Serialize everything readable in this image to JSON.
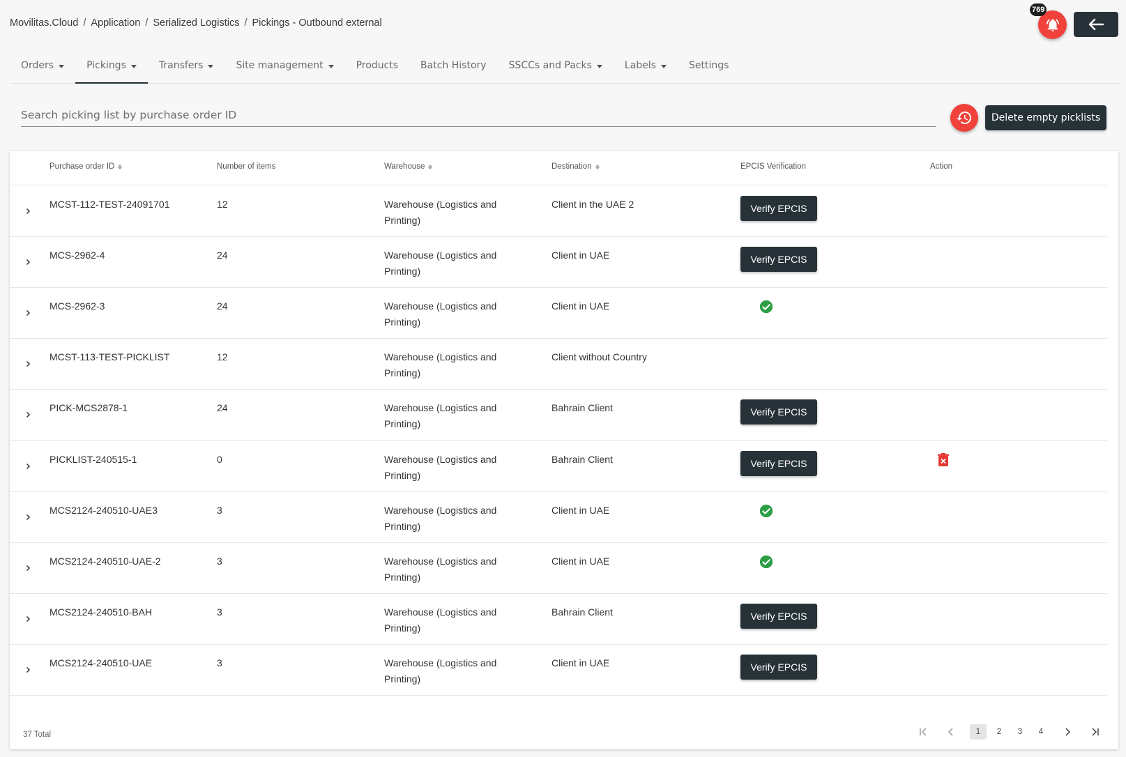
{
  "breadcrumb": [
    "Movilitas.Cloud",
    "Application",
    "Serialized Logistics",
    "Pickings - Outbound external"
  ],
  "breadcrumb_separator": "/",
  "notifications": {
    "count": "769",
    "icon": "bell-icon",
    "color": "#f0413a"
  },
  "back_icon": "arrow-left-icon",
  "tabs": [
    {
      "label": "Orders",
      "dropdown": true
    },
    {
      "label": "Pickings",
      "dropdown": true,
      "active": true
    },
    {
      "label": "Transfers",
      "dropdown": true
    },
    {
      "label": "Site management",
      "dropdown": true
    },
    {
      "label": "Products",
      "dropdown": false
    },
    {
      "label": "Batch History",
      "dropdown": false
    },
    {
      "label": "SSCCs and Packs",
      "dropdown": true
    },
    {
      "label": "Labels",
      "dropdown": true
    },
    {
      "label": "Settings",
      "dropdown": false
    }
  ],
  "search": {
    "placeholder": "Search picking list by purchase order ID",
    "value": ""
  },
  "toolbar": {
    "restore_icon": "history-icon",
    "delete_empty_label": "Delete empty picklists"
  },
  "table": {
    "headers": {
      "po": "Purchase order ID",
      "items": "Number of items",
      "warehouse": "Warehouse",
      "destination": "Destination",
      "epcis": "EPCIS Verification",
      "action": "Action"
    },
    "verify_label": "Verify EPCIS",
    "rows": [
      {
        "po": "MCST-112-TEST-24091701",
        "items": "12",
        "warehouse_l1": "Warehouse (Logistics and",
        "warehouse_l2": "Printing)",
        "destination": "Client in the UAE 2",
        "epcis": "button",
        "action": ""
      },
      {
        "po": "MCS-2962-4",
        "items": "24",
        "warehouse_l1": "Warehouse (Logistics and",
        "warehouse_l2": "Printing)",
        "destination": "Client in UAE",
        "epcis": "button",
        "action": ""
      },
      {
        "po": "MCS-2962-3",
        "items": "24",
        "warehouse_l1": "Warehouse (Logistics and",
        "warehouse_l2": "Printing)",
        "destination": "Client in UAE",
        "epcis": "verified",
        "action": ""
      },
      {
        "po": "MCST-113-TEST-PICKLIST",
        "items": "12",
        "warehouse_l1": "Warehouse (Logistics and",
        "warehouse_l2": "Printing)",
        "destination": "Client without Country",
        "epcis": "none",
        "action": ""
      },
      {
        "po": "PICK-MCS2878-1",
        "items": "24",
        "warehouse_l1": "Warehouse (Logistics and",
        "warehouse_l2": "Printing)",
        "destination": "Bahrain Client",
        "epcis": "button",
        "action": ""
      },
      {
        "po": "PICKLIST-240515-1",
        "items": "0",
        "warehouse_l1": "Warehouse (Logistics and",
        "warehouse_l2": "Printing)",
        "destination": "Bahrain Client",
        "epcis": "button",
        "action": "delete"
      },
      {
        "po": "MCS2124-240510-UAE3",
        "items": "3",
        "warehouse_l1": "Warehouse (Logistics and",
        "warehouse_l2": "Printing)",
        "destination": "Client in UAE",
        "epcis": "verified",
        "action": ""
      },
      {
        "po": "MCS2124-240510-UAE-2",
        "items": "3",
        "warehouse_l1": "Warehouse (Logistics and",
        "warehouse_l2": "Printing)",
        "destination": "Client in UAE",
        "epcis": "verified",
        "action": ""
      },
      {
        "po": "MCS2124-240510-BAH",
        "items": "3",
        "warehouse_l1": "Warehouse (Logistics and",
        "warehouse_l2": "Printing)",
        "destination": "Bahrain Client",
        "epcis": "button",
        "action": ""
      },
      {
        "po": "MCS2124-240510-UAE",
        "items": "3",
        "warehouse_l1": "Warehouse (Logistics and",
        "warehouse_l2": "Printing)",
        "destination": "Client in UAE",
        "epcis": "button",
        "action": ""
      }
    ]
  },
  "footer": {
    "total": "37 Total",
    "pages": [
      "1",
      "2",
      "3",
      "4"
    ],
    "current_page": "1"
  },
  "colors": {
    "accent_red": "#f0413a",
    "dark_button": "#273238",
    "verified_green": "#2e9e44",
    "delete_red": "#e53935"
  }
}
